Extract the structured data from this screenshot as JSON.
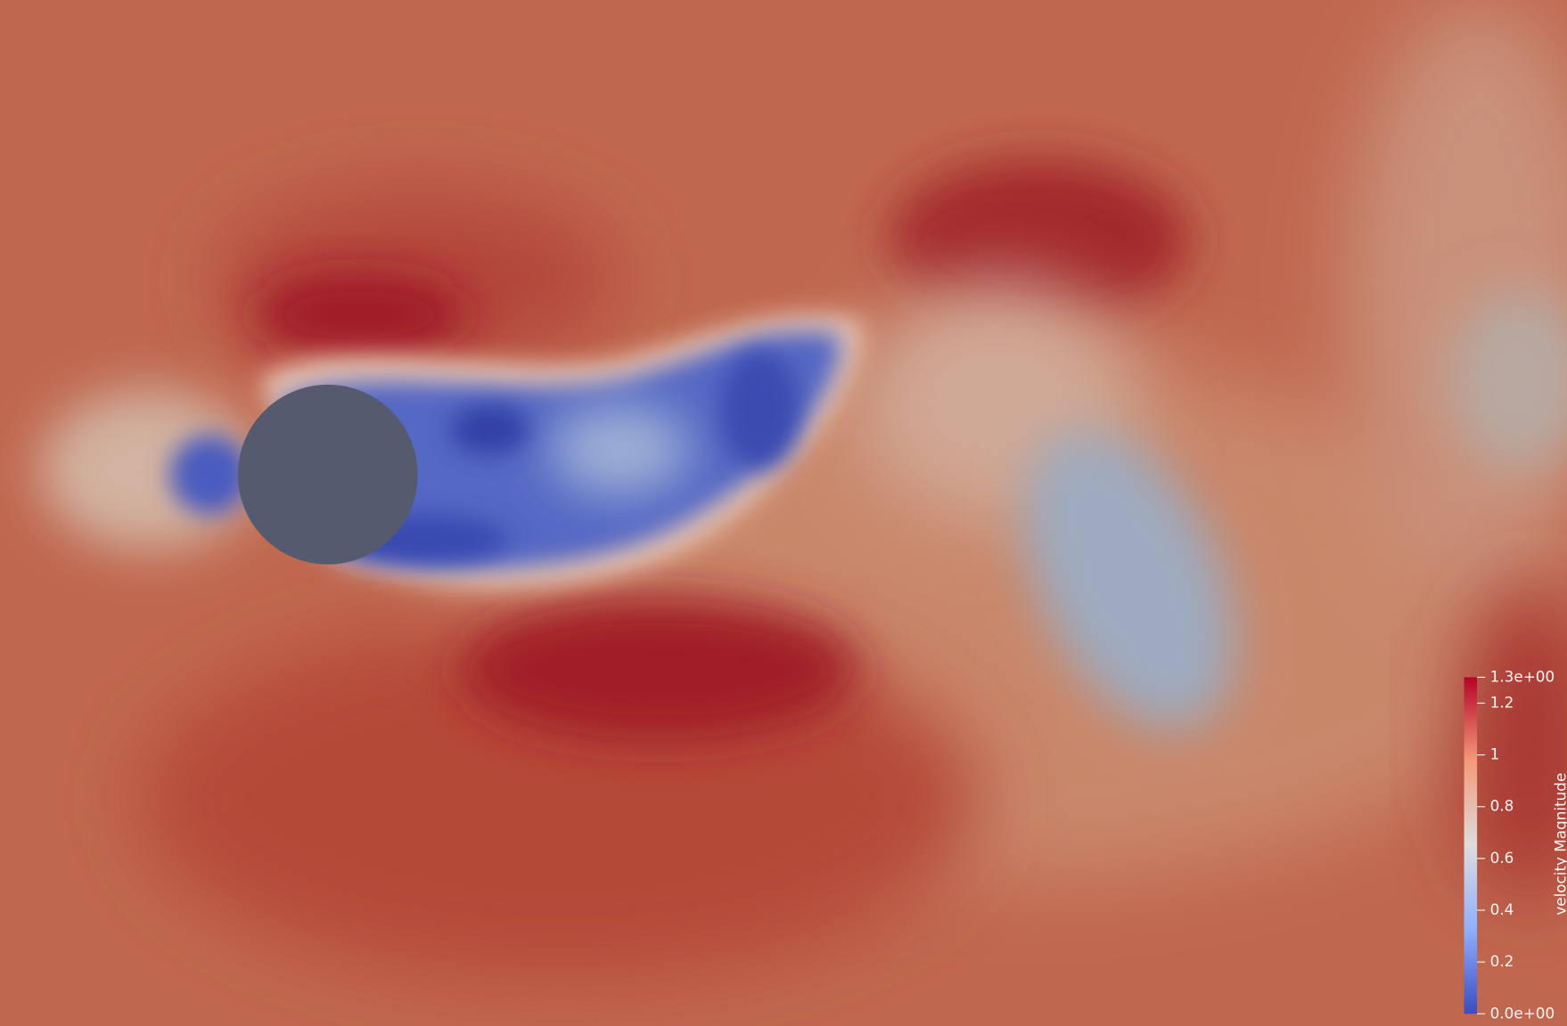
{
  "colorbar": {
    "title": "velocity Magnitude",
    "range": [
      0,
      1.3
    ],
    "ticks": [
      {
        "value": 0,
        "label": "0.0e+00"
      },
      0.2,
      0.4,
      0.6,
      0.8,
      1,
      1.2,
      {
        "value": 1.3,
        "label": "1.3e+00"
      }
    ]
  }
}
